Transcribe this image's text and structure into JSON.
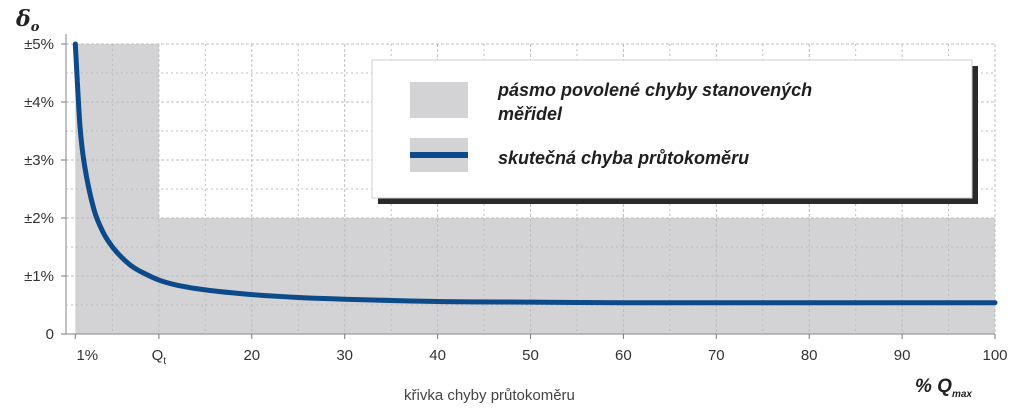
{
  "chart_data": {
    "type": "line",
    "y_axis": {
      "label_main": "δ",
      "label_sub": "o",
      "range": [
        0,
        5
      ],
      "ticks": [
        {
          "value": 0,
          "label": "0"
        },
        {
          "value": 1,
          "label": "±1%"
        },
        {
          "value": 2,
          "label": "±2%"
        },
        {
          "value": 3,
          "label": "±3%"
        },
        {
          "value": 4,
          "label": "±4%"
        },
        {
          "value": 5,
          "label": "±5%"
        }
      ]
    },
    "x_axis": {
      "label": "křivka chyby průtokoměru",
      "unit_main": "% Q",
      "unit_sub": "max",
      "range": [
        0,
        100
      ],
      "ticks": [
        {
          "value": 1,
          "label": "1%",
          "sub": ""
        },
        {
          "value": 10,
          "label": "Q",
          "sub": "t"
        },
        {
          "value": 20,
          "label": "20",
          "sub": ""
        },
        {
          "value": 30,
          "label": "30",
          "sub": ""
        },
        {
          "value": 40,
          "label": "40",
          "sub": ""
        },
        {
          "value": 50,
          "label": "50",
          "sub": ""
        },
        {
          "value": 60,
          "label": "60",
          "sub": ""
        },
        {
          "value": 70,
          "label": "70",
          "sub": ""
        },
        {
          "value": 80,
          "label": "80",
          "sub": ""
        },
        {
          "value": 90,
          "label": "90",
          "sub": ""
        },
        {
          "value": 100,
          "label": "100",
          "sub": ""
        }
      ]
    },
    "grid": true,
    "permitted_error_band": [
      {
        "x_from": 1,
        "x_to": 10,
        "y_max": 5
      },
      {
        "x_from": 10,
        "x_to": 100,
        "y_max": 2
      }
    ],
    "series": [
      {
        "name": "skutečná chyba průtokoměru",
        "x": [
          1,
          1.5,
          2,
          3,
          4,
          5,
          6,
          7,
          8,
          10,
          12,
          15,
          20,
          25,
          30,
          40,
          50,
          60,
          70,
          80,
          90,
          100
        ],
        "y": [
          5,
          3.6,
          2.9,
          2.15,
          1.75,
          1.5,
          1.32,
          1.18,
          1.08,
          0.93,
          0.84,
          0.76,
          0.68,
          0.63,
          0.6,
          0.56,
          0.55,
          0.54,
          0.54,
          0.54,
          0.54,
          0.54
        ]
      }
    ],
    "legend": {
      "placement": "top-right",
      "items": [
        {
          "text_line1": "pásmo povolené chyby stanovených",
          "text_line2": "měřidel",
          "swatch": "band"
        },
        {
          "text_line1": "skutečná chyba průtokoměru",
          "text_line2": "",
          "swatch": "line"
        }
      ]
    },
    "colors": {
      "band": "#d3d3d5",
      "line": "#0d4a8a",
      "grid": "#bdbdbd"
    }
  }
}
